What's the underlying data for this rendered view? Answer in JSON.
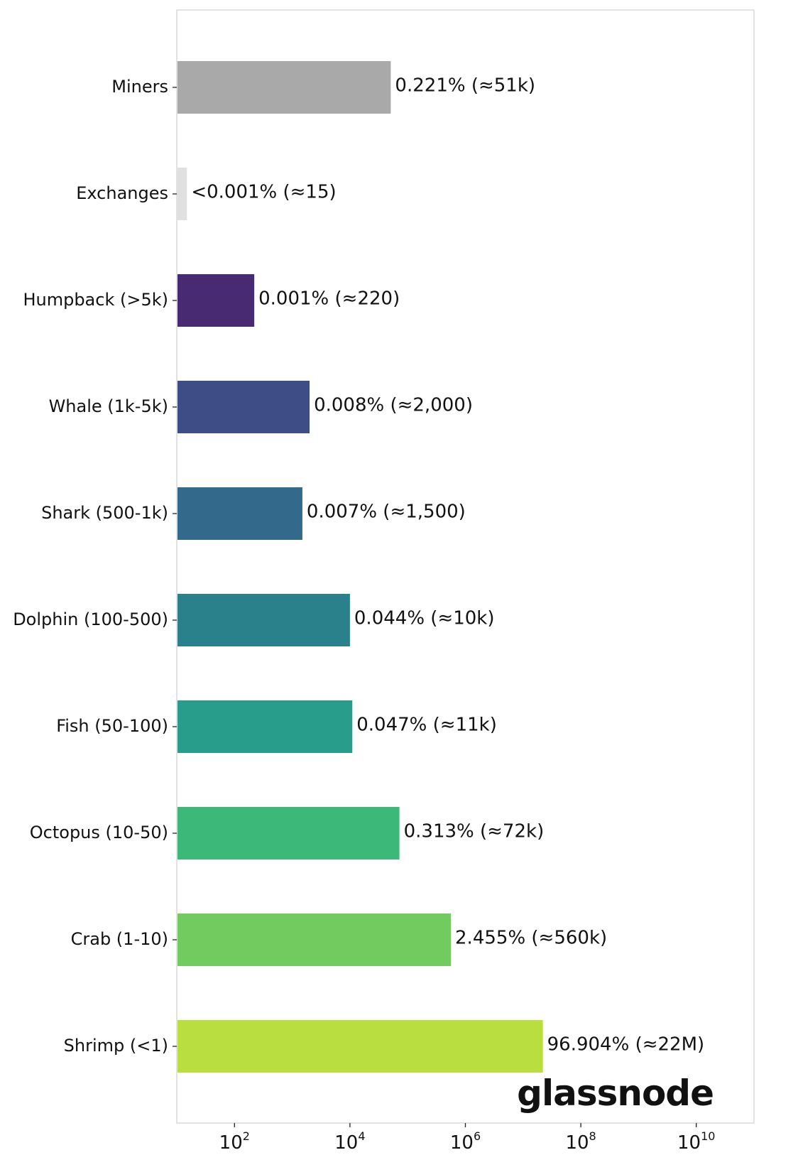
{
  "chart_data": {
    "type": "bar",
    "orientation": "horizontal",
    "x_scale": "log",
    "xlim": [
      10,
      100000000000
    ],
    "grid": false,
    "categories": [
      "Miners",
      "Exchanges",
      "Humpback (>5k)",
      "Whale (1k-5k)",
      "Shark (500-1k)",
      "Dolphin (100-500)",
      "Fish (50-100)",
      "Octopus (10-50)",
      "Crab (1-10)",
      "Shrimp (<1)"
    ],
    "values": [
      51000,
      15,
      220,
      2000,
      1500,
      10000,
      11000,
      72000,
      560000,
      22000000
    ],
    "data_labels": [
      "0.221% (≈51k)",
      "<0.001% (≈15)",
      "0.001% (≈220)",
      "0.008% (≈2,000)",
      "0.007% (≈1,500)",
      "0.044% (≈10k)",
      "0.047% (≈11k)",
      "0.313% (≈72k)",
      "2.455% (≈560k)",
      "96.904% (≈22M)"
    ],
    "colors": [
      "#a9a9a9",
      "#e0e0e0",
      "#472a72",
      "#3f4d87",
      "#336a8c",
      "#2a818b",
      "#289d8c",
      "#3cb879",
      "#71cb5e",
      "#b9de3f"
    ],
    "x_ticks": [
      {
        "base": "10",
        "exp": "2",
        "value": 100
      },
      {
        "base": "10",
        "exp": "4",
        "value": 10000
      },
      {
        "base": "10",
        "exp": "6",
        "value": 1000000
      },
      {
        "base": "10",
        "exp": "8",
        "value": 100000000
      },
      {
        "base": "10",
        "exp": "10",
        "value": 10000000000
      }
    ],
    "title": "",
    "xlabel": "",
    "ylabel": ""
  },
  "branding": {
    "logo_text": "glassnode"
  }
}
